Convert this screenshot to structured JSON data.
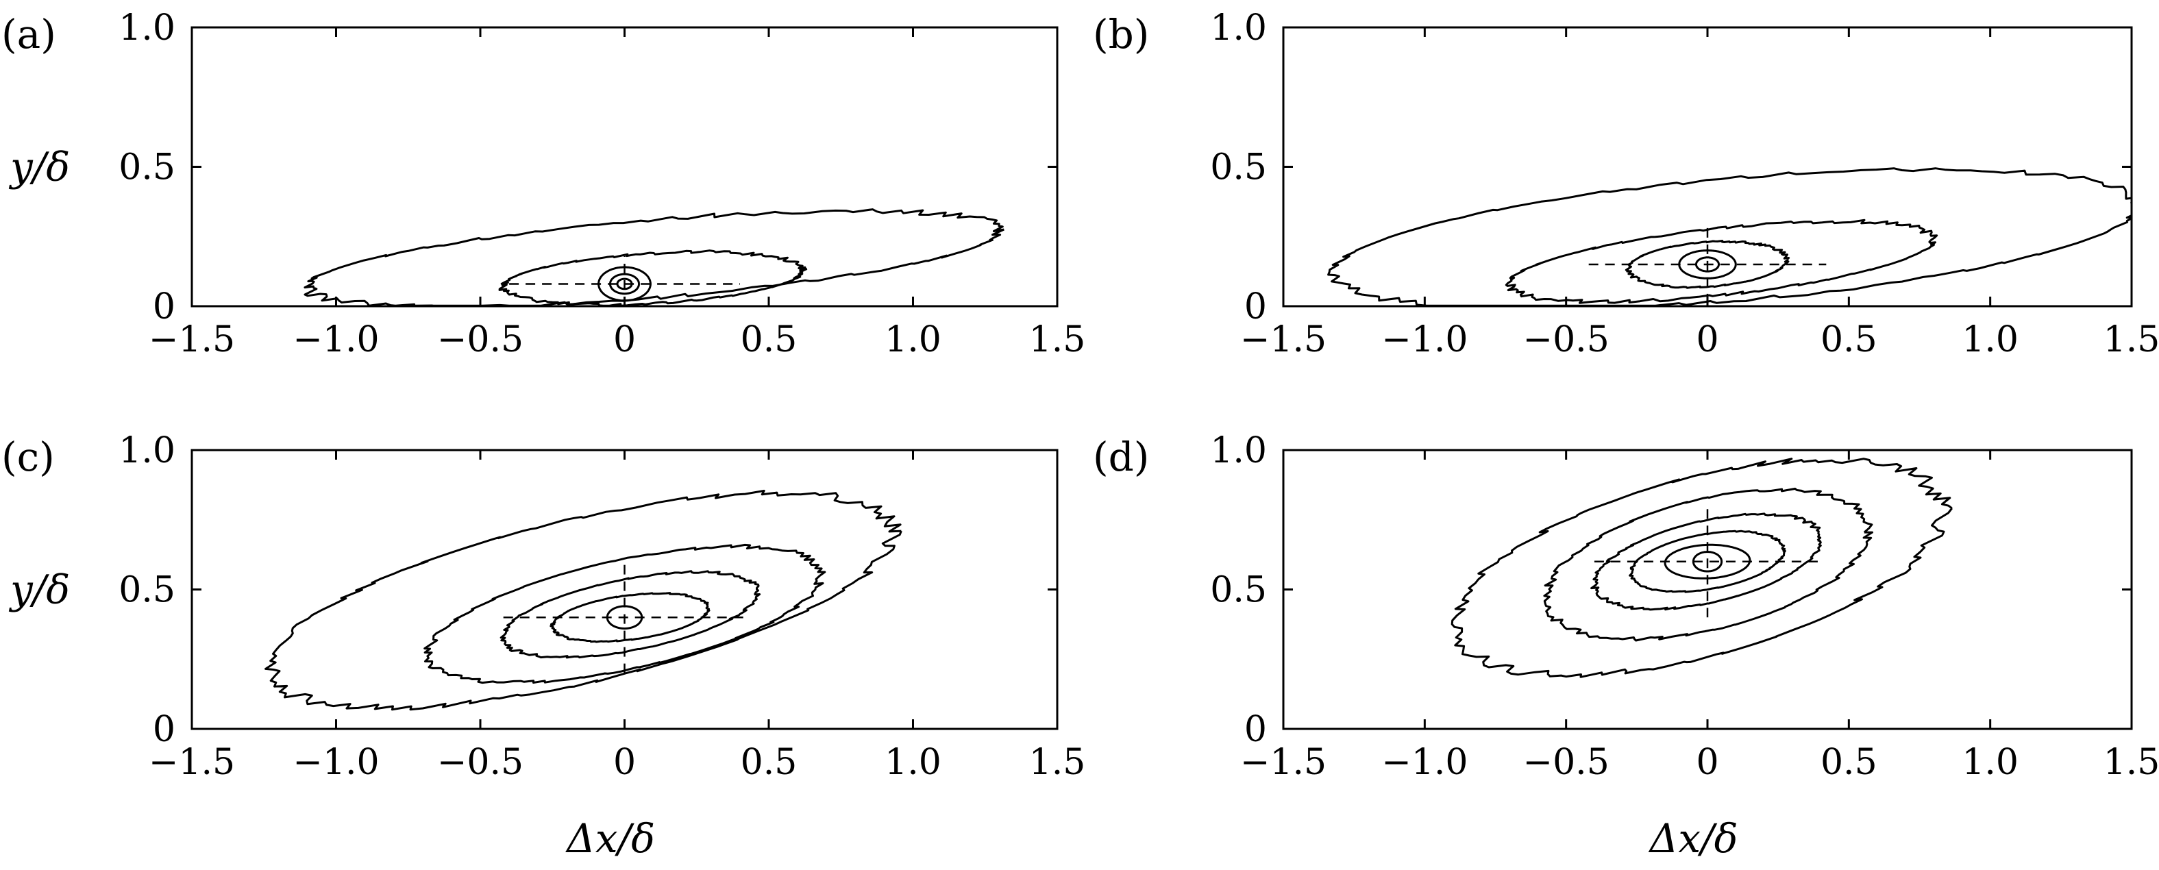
{
  "chart_data": [
    {
      "panel": "(a)",
      "type": "contour",
      "xlabel": "",
      "ylabel": "y/δ",
      "xlim": [
        -1.5,
        1.5
      ],
      "ylim": [
        0,
        1.0
      ],
      "xticks": [
        "−1.5",
        "−1.0",
        "−0.5",
        "0",
        "0.5",
        "1.0",
        "1.5"
      ],
      "yticks": [
        "0",
        "0.5",
        "1.0"
      ],
      "center": [
        0,
        0.08
      ],
      "crosshair": {
        "x_half_width": 0.4,
        "y_half_height": 0.1
      },
      "contours": [
        {
          "cx": 0.1,
          "cy": 0.17,
          "rx": 1.2,
          "ry": 0.14,
          "tilt": 0.1,
          "rough": 0.008
        },
        {
          "cx": 0.1,
          "cy": 0.1,
          "rx": 0.52,
          "ry": 0.09,
          "tilt": 0.03,
          "rough": 0.005
        },
        {
          "cx": 0.0,
          "cy": 0.08,
          "rx": 0.09,
          "ry": 0.06,
          "tilt": 0.0,
          "rough": 0.0
        },
        {
          "cx": 0.0,
          "cy": 0.08,
          "rx": 0.05,
          "ry": 0.035,
          "tilt": 0.0,
          "rough": 0.0
        },
        {
          "cx": 0.0,
          "cy": 0.08,
          "rx": 0.025,
          "ry": 0.018,
          "tilt": 0.0,
          "rough": 0.0
        }
      ]
    },
    {
      "panel": "(b)",
      "type": "contour",
      "xlabel": "",
      "ylabel": "",
      "xlim": [
        -1.5,
        1.5
      ],
      "ylim": [
        0,
        1.0
      ],
      "xticks": [
        "−1.5",
        "−1.0",
        "−0.5",
        "0",
        "0.5",
        "1.0",
        "1.5"
      ],
      "yticks": [
        "0",
        "0.5",
        "1.0"
      ],
      "center": [
        0,
        0.15
      ],
      "crosshair": {
        "x_half_width": 0.42,
        "y_half_height": 0.14
      },
      "contours": [
        {
          "cx": 0.1,
          "cy": 0.24,
          "rx": 1.42,
          "ry": 0.22,
          "tilt": 0.12,
          "rough": 0.008
        },
        {
          "cx": 0.05,
          "cy": 0.16,
          "rx": 0.75,
          "ry": 0.12,
          "tilt": 0.08,
          "rough": 0.006
        },
        {
          "cx": 0.0,
          "cy": 0.15,
          "rx": 0.28,
          "ry": 0.08,
          "tilt": 0.02,
          "rough": 0.003
        },
        {
          "cx": 0.0,
          "cy": 0.15,
          "rx": 0.1,
          "ry": 0.05,
          "tilt": 0.0,
          "rough": 0.0
        },
        {
          "cx": 0.0,
          "cy": 0.15,
          "rx": 0.04,
          "ry": 0.025,
          "tilt": 0.0,
          "rough": 0.0
        }
      ]
    },
    {
      "panel": "(c)",
      "type": "contour",
      "xlabel": "Δx/δ",
      "ylabel": "y/δ",
      "xlim": [
        -1.5,
        1.5
      ],
      "ylim": [
        0,
        1.0
      ],
      "xticks": [
        "−1.5",
        "−1.0",
        "−0.5",
        "0",
        "0.5",
        "1.0",
        "1.5"
      ],
      "yticks": [
        "0",
        "0.5",
        "1.0"
      ],
      "center": [
        0,
        0.4
      ],
      "crosshair": {
        "x_half_width": 0.42,
        "y_half_height": 0.2
      },
      "contours": [
        {
          "cx": -0.15,
          "cy": 0.46,
          "rx": 1.08,
          "ry": 0.3,
          "tilt": 0.24,
          "rough": 0.012
        },
        {
          "cx": 0.0,
          "cy": 0.41,
          "rx": 0.68,
          "ry": 0.2,
          "tilt": 0.14,
          "rough": 0.006
        },
        {
          "cx": 0.02,
          "cy": 0.41,
          "rx": 0.44,
          "ry": 0.13,
          "tilt": 0.08,
          "rough": 0.004
        },
        {
          "cx": 0.02,
          "cy": 0.4,
          "rx": 0.27,
          "ry": 0.08,
          "tilt": 0.04,
          "rough": 0.002
        },
        {
          "cx": 0.0,
          "cy": 0.4,
          "rx": 0.06,
          "ry": 0.04,
          "tilt": 0.0,
          "rough": 0.0
        }
      ]
    },
    {
      "panel": "(d)",
      "type": "contour",
      "xlabel": "Δx/δ",
      "ylabel": "",
      "xlim": [
        -1.5,
        1.5
      ],
      "ylim": [
        0,
        1.0
      ],
      "xticks": [
        "−1.5",
        "−1.0",
        "−0.5",
        "0",
        "0.5",
        "1.0",
        "1.5"
      ],
      "yticks": [
        "0",
        "0.5",
        "1.0"
      ],
      "center": [
        0,
        0.6
      ],
      "crosshair": {
        "x_half_width": 0.4,
        "y_half_height": 0.2
      },
      "contours": [
        {
          "cx": -0.03,
          "cy": 0.58,
          "rx": 0.86,
          "ry": 0.33,
          "tilt": 0.2,
          "rough": 0.012
        },
        {
          "cx": 0.0,
          "cy": 0.59,
          "rx": 0.57,
          "ry": 0.24,
          "tilt": 0.12,
          "rough": 0.006
        },
        {
          "cx": 0.0,
          "cy": 0.6,
          "rx": 0.4,
          "ry": 0.15,
          "tilt": 0.08,
          "rough": 0.004
        },
        {
          "cx": 0.0,
          "cy": 0.6,
          "rx": 0.27,
          "ry": 0.1,
          "tilt": 0.05,
          "rough": 0.002
        },
        {
          "cx": 0.0,
          "cy": 0.6,
          "rx": 0.15,
          "ry": 0.06,
          "tilt": 0.02,
          "rough": 0.0
        },
        {
          "cx": 0.0,
          "cy": 0.6,
          "rx": 0.05,
          "ry": 0.035,
          "tilt": 0.0,
          "rough": 0.0
        }
      ]
    }
  ]
}
